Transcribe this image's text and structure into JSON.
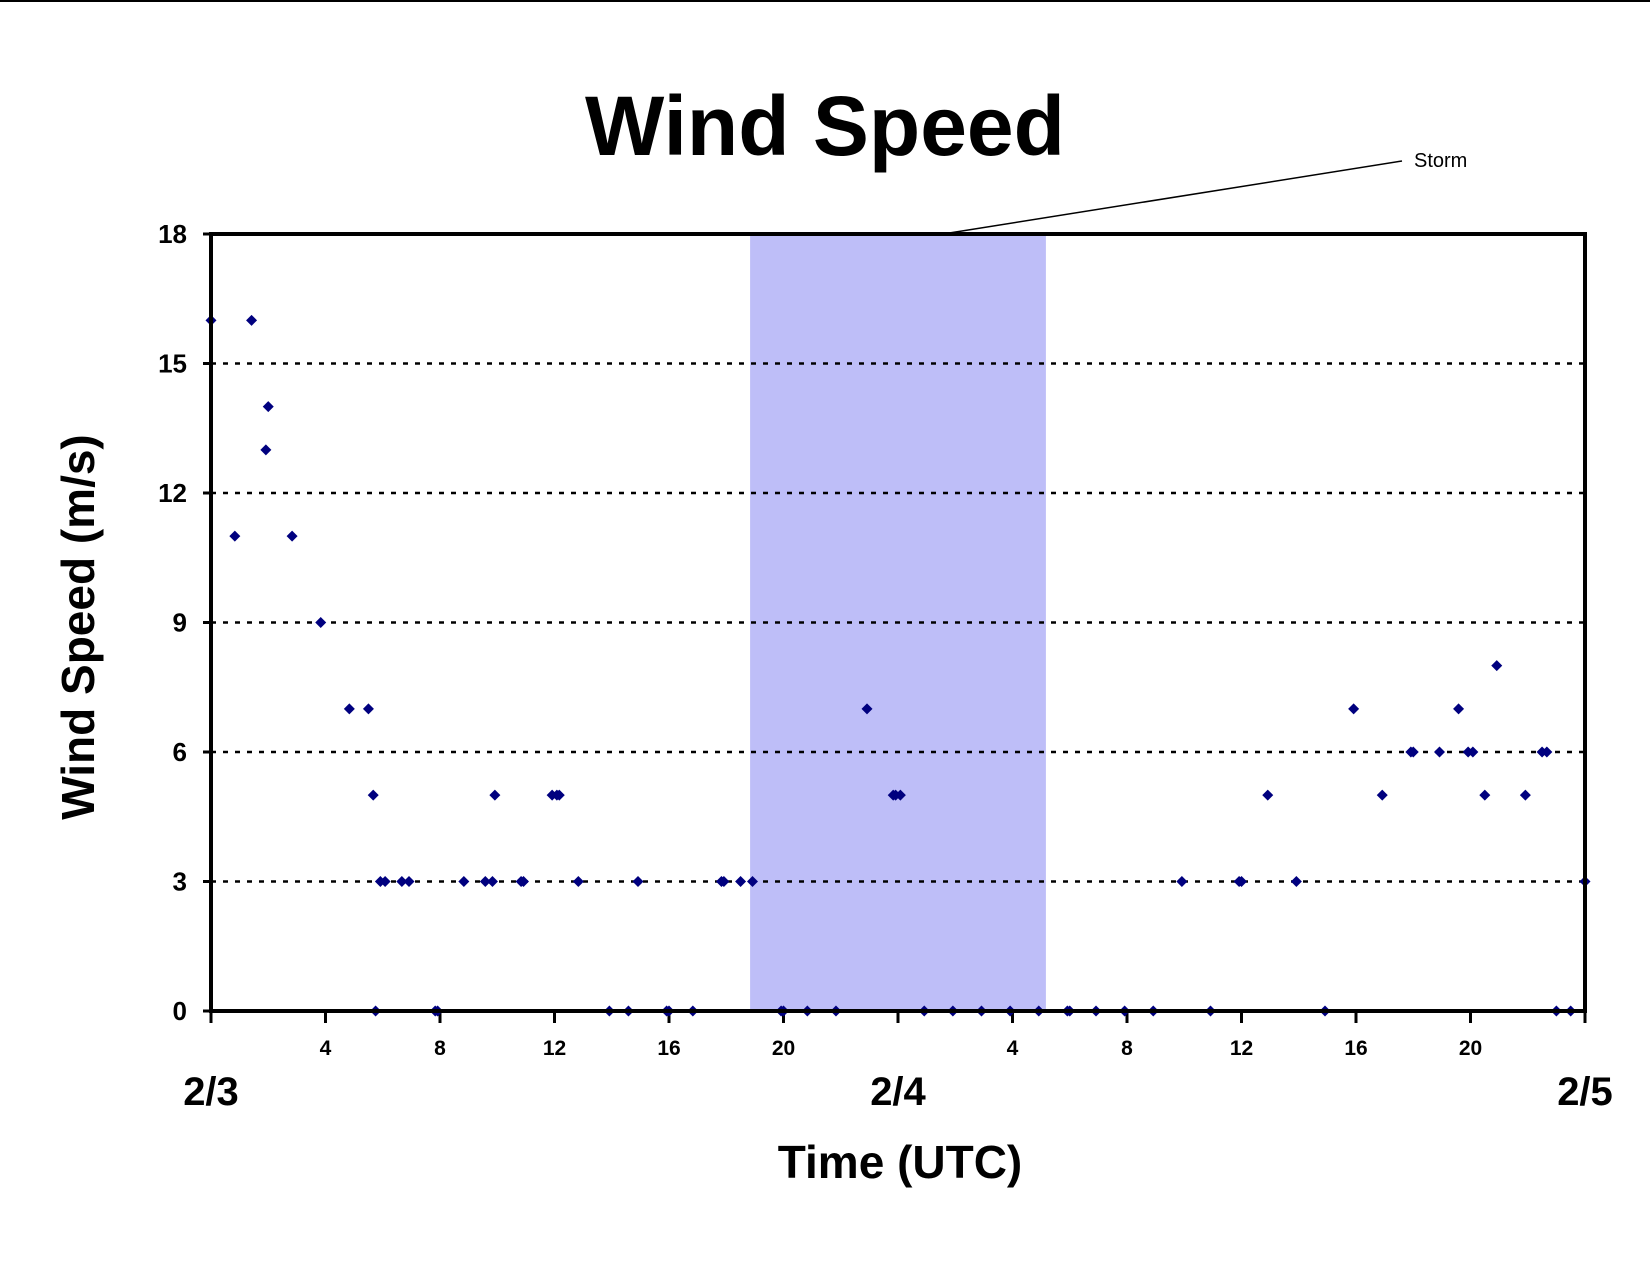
{
  "chart_data": {
    "type": "scatter",
    "title": "Wind Speed",
    "xlabel": "Time (UTC)",
    "ylabel": "Wind Speed (m/s)",
    "ylim": [
      0,
      18
    ],
    "xlim": [
      "2/3 00:00",
      "2/5 00:00"
    ],
    "yticks": [
      "0",
      "3",
      "6",
      "9",
      "12",
      "15",
      "18"
    ],
    "hour_ticks": [
      "4",
      "8",
      "12",
      "16",
      "20",
      "4",
      "8",
      "12",
      "16",
      "20"
    ],
    "date_ticks": [
      "2/3",
      "2/4",
      "2/5"
    ],
    "grid": "horizontal dotted",
    "marker_color": "#00007F",
    "highlight": {
      "label": "Storm",
      "start": "2/3 18:50",
      "end": "2/4 05:10",
      "color": "#BEBEF8"
    },
    "series": [
      {
        "x": [
          "2/3 00:00",
          "2/3 00:50",
          "2/3 01:25",
          "2/3 01:55",
          "2/3 02:00",
          "2/3 02:50",
          "2/3 03:50",
          "2/3 04:50",
          "2/3 05:30",
          "2/3 05:40",
          "2/3 05:45",
          "2/3 05:55",
          "2/3 06:05",
          "2/3 06:40",
          "2/3 06:55",
          "2/3 07:50",
          "2/3 07:55",
          "2/3 08:50",
          "2/3 09:35",
          "2/3 09:50",
          "2/3 09:55",
          "2/3 10:50",
          "2/3 10:55",
          "2/3 11:55",
          "2/3 12:05",
          "2/3 12:10",
          "2/3 12:50",
          "2/3 13:55",
          "2/3 14:35",
          "2/3 14:55",
          "2/3 15:55",
          "2/3 16:00",
          "2/3 16:50",
          "2/3 17:50",
          "2/3 17:55",
          "2/3 18:30",
          "2/3 18:55",
          "2/3 19:55",
          "2/3 20:00",
          "2/3 20:50",
          "2/3 21:50",
          "2/3 22:55",
          "2/3 23:50",
          "2/3 23:55",
          "2/4 00:05",
          "2/4 00:55",
          "2/4 01:55",
          "2/4 02:55",
          "2/4 03:55",
          "2/4 04:55",
          "2/4 05:55",
          "2/4 06:00",
          "2/4 06:55",
          "2/4 07:55",
          "2/4 08:55",
          "2/4 09:55",
          "2/4 10:55",
          "2/4 11:55",
          "2/4 12:00",
          "2/4 12:55",
          "2/4 13:55",
          "2/4 14:55",
          "2/4 15:55",
          "2/4 16:55",
          "2/4 17:55",
          "2/4 18:00",
          "2/4 18:55",
          "2/4 19:35",
          "2/4 19:55",
          "2/4 20:05",
          "2/4 20:30",
          "2/4 20:55",
          "2/4 21:55",
          "2/4 22:30",
          "2/4 22:40",
          "2/4 23:00",
          "2/4 23:30",
          "2/5 00:00"
        ],
        "y": [
          16,
          11,
          16,
          13,
          14,
          11,
          9,
          7,
          7,
          5,
          0,
          3,
          3,
          3,
          3,
          0,
          0,
          3,
          3,
          3,
          5,
          3,
          3,
          5,
          5,
          5,
          3,
          0,
          0,
          3,
          0,
          0,
          0,
          3,
          3,
          3,
          3,
          0,
          0,
          0,
          0,
          7,
          5,
          5,
          5,
          0,
          0,
          0,
          0,
          0,
          0,
          0,
          0,
          0,
          0,
          3,
          0,
          3,
          3,
          5,
          3,
          0,
          7,
          5,
          6,
          6,
          6,
          7,
          6,
          6,
          5,
          8,
          5,
          6,
          6,
          0,
          0,
          3
        ]
      }
    ]
  }
}
